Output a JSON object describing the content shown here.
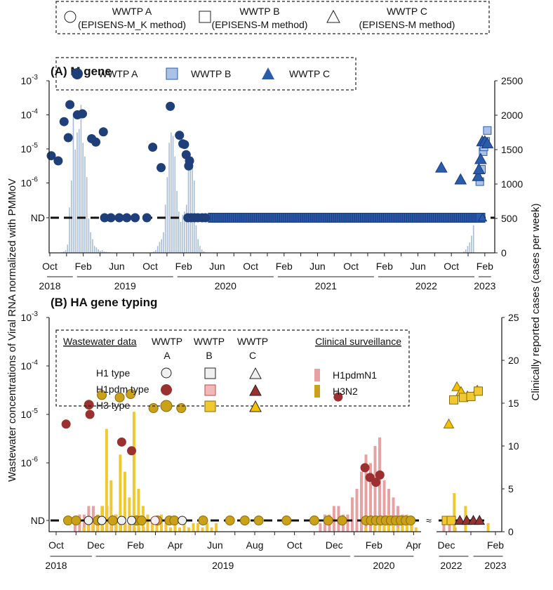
{
  "top_legend": {
    "a": "WWTP A",
    "a_method": "(EPISENS-M_K method)",
    "b": "WWTP B",
    "b_method": "(EPISENS-M method)",
    "c": "WWTP C",
    "c_method": "(EPISENS-M method)"
  },
  "y_label_left": "Wastewater concentrations of Viral RNA normalized with PMMoV",
  "y_label_right": "Clinically reported cases (cases per week)",
  "colors": {
    "navy": "#1f3f7a",
    "lightblue": "#a9c2e6",
    "blue": "#2a5caa",
    "bars_a": "#a8bcd6",
    "red": "#9b3030",
    "pink": "#e8a0a0",
    "gold": "#c9a21a",
    "yellow": "#f0c830",
    "white": "#f0f0f0"
  },
  "chart_data": [
    {
      "type": "scatter+bar",
      "title": "(A) M gene",
      "x_unit": "months since Oct 2018",
      "left_ticks": [
        "10-3",
        "10-4",
        "10-5",
        "10-6",
        "ND"
      ],
      "right_ticks": [
        "2500",
        "2000",
        "1500",
        "1000",
        "500",
        "0"
      ],
      "ylim_right": [
        0,
        2500
      ],
      "x_tick_labels": [
        "Oct",
        "Feb",
        "Jun",
        "Oct",
        "Feb",
        "Jun",
        "Oct",
        "Feb",
        "Jun",
        "Oct",
        "Feb",
        "Jun",
        "Oct",
        "Feb"
      ],
      "years": [
        "2018",
        "2019",
        "2020",
        "2021",
        "2022",
        "2023"
      ],
      "legend": [
        "WWTP A",
        "WWTP B",
        "WWTP C"
      ],
      "wwtp_a": [
        [
          0.17,
          -5.2
        ],
        [
          1.0,
          -5.35
        ],
        [
          1.7,
          -4.2
        ],
        [
          2.2,
          -4.67
        ],
        [
          2.4,
          -3.7
        ],
        [
          3.3,
          -4.0
        ],
        [
          3.9,
          -3.97
        ],
        [
          5.0,
          -4.7
        ],
        [
          5.5,
          -4.8
        ],
        [
          6.4,
          -4.5
        ],
        [
          12.3,
          -4.95
        ],
        [
          13.3,
          -5.55
        ],
        [
          14.4,
          -3.75
        ],
        [
          15.5,
          -4.6
        ],
        [
          15.9,
          -4.85
        ],
        [
          16.1,
          -4.87
        ],
        [
          16.3,
          -5.17
        ],
        [
          16.7,
          -5.35
        ],
        [
          16.6,
          -5.5
        ]
      ],
      "wwtp_a_nd": [
        6.55,
        7.3,
        8.3,
        9.2,
        10.2,
        11.6,
        16.5,
        16.9,
        17.3,
        17.7,
        18.2,
        18.6
      ],
      "wwtp_b": [
        [
          51.4,
          -5.96
        ],
        [
          51.6,
          -5.6
        ],
        [
          51.8,
          -5.08
        ],
        [
          51.9,
          -4.94
        ],
        [
          52.1,
          -4.78
        ],
        [
          52.3,
          -4.46
        ]
      ],
      "wwtp_bc_nd_range": [
        19.5,
        51.6
      ],
      "wwtp_c": [
        [
          46.8,
          -5.55
        ],
        [
          49.1,
          -5.9
        ],
        [
          51.2,
          -5.8
        ],
        [
          51.3,
          -5.6
        ],
        [
          51.5,
          -5.3
        ],
        [
          51.7,
          -4.78
        ],
        [
          52.0,
          -4.78
        ],
        [
          52.3,
          -4.84
        ]
      ],
      "cases": [
        {
          "start": 1.2,
          "values": [
            5,
            10,
            20,
            40,
            120,
            660,
            1050,
            2020,
            1500,
            1750,
            1800,
            2150,
            1600,
            1400,
            1100,
            500,
            300,
            200,
            100,
            80,
            50,
            30,
            40,
            20,
            15,
            10,
            8
          ]
        },
        {
          "start": 12.2,
          "values": [
            10,
            20,
            40,
            100,
            160,
            200,
            300,
            700,
            1100,
            1600,
            1750,
            1700,
            1400,
            900,
            600,
            450,
            550,
            600,
            700,
            1300,
            1400,
            1400,
            1050,
            400,
            200,
            100,
            50,
            20
          ]
        },
        {
          "start": 49.5,
          "values": [
            20,
            50,
            100,
            150,
            250,
            400
          ]
        }
      ]
    },
    {
      "type": "scatter+bar",
      "title": "(B) HA gene typing",
      "x_unit": "months since Oct 2018 (left panel), months since Dec 2022 (right panel)",
      "left_ticks": [
        "10-3",
        "10-4",
        "10-5",
        "10-6",
        "ND"
      ],
      "right_ticks": [
        "25",
        "20",
        "15",
        "10",
        "5",
        "0"
      ],
      "ylim_right": [
        0,
        25
      ],
      "x_tick_labels": [
        "Oct",
        "Dec",
        "Feb",
        "Apr",
        "Jun",
        "Aug",
        "Oct",
        "Dec",
        "Feb",
        "Apr"
      ],
      "x_tick_labels_right": [
        "Dec",
        "Feb"
      ],
      "years": [
        "2018",
        "2019",
        "2020"
      ],
      "years_right": [
        "2022",
        "2023"
      ],
      "legend": {
        "ww_title": "Wastewater data",
        "cols": [
          "WWTP",
          "WWTP",
          "WWTP"
        ],
        "col_letters": [
          "A",
          "B",
          "C"
        ],
        "rows": [
          "H1 type",
          "H1pdm type",
          "H3 type"
        ],
        "clin_title": "Clinical surveillance",
        "clin": [
          "H1pdmN1",
          "H3N2"
        ]
      },
      "h3_a": [
        [
          1.65,
          -4.8
        ],
        [
          2.3,
          -4.6
        ],
        [
          3.2,
          -4.65
        ],
        [
          3.75,
          -4.58
        ],
        [
          4.9,
          -4.87
        ],
        [
          6.3,
          -4.87
        ]
      ],
      "h1pdm_a": [
        [
          0.5,
          -5.2
        ],
        [
          1.65,
          -4.8
        ],
        [
          1.7,
          -5.0
        ],
        [
          3.3,
          -5.57
        ],
        [
          3.8,
          -5.75
        ],
        [
          14.2,
          -4.64
        ],
        [
          15.55,
          -6.1
        ],
        [
          15.8,
          -6.3
        ],
        [
          16.1,
          -6.4
        ],
        [
          16.3,
          -6.25
        ]
      ],
      "h3_a_nd": [
        0.6,
        1.0,
        2.1,
        2.85,
        4.05,
        4.3,
        5.1,
        5.7,
        5.95,
        7.4,
        8.75,
        9.5,
        10.2,
        11.6,
        13.0,
        13.7,
        14.4,
        15.6,
        15.85,
        16.1,
        16.35,
        16.6,
        16.85,
        17.1,
        17.35,
        17.6,
        17.85
      ],
      "h1_a_nd": [
        1.63,
        2.3,
        3.3,
        3.8,
        6.35
      ],
      "h1pdm_a_nd": [
        4.98
      ],
      "h3_b_right": [
        [
          0.3,
          -4.7
        ],
        [
          0.7,
          -4.65
        ],
        [
          1.0,
          -4.63
        ],
        [
          1.3,
          -4.52
        ]
      ],
      "h3_c_right": [
        [
          0.1,
          -5.2
        ],
        [
          0.43,
          -4.43
        ],
        [
          0.6,
          -4.53
        ],
        [
          0.86,
          -4.62
        ],
        [
          1.26,
          -4.5
        ]
      ],
      "h3_b_right_nd": [
        0.0,
        0.2
      ],
      "h1pdm_c_right_nd": [
        0.55,
        0.83,
        1.1,
        1.35
      ],
      "h1pdmn1": [
        {
          "start": 0.95,
          "step": 0.23,
          "values": [
            1,
            2,
            2,
            3,
            3,
            2,
            3,
            3,
            2,
            2,
            1.5,
            1,
            1,
            0.5,
            0.5,
            0.5
          ]
        },
        {
          "start": 13.3,
          "step": 0.23,
          "values": [
            1,
            2,
            2,
            3,
            3,
            2,
            2,
            4,
            5,
            7,
            9,
            8,
            10,
            11,
            6,
            5,
            4,
            3,
            2,
            1,
            1
          ]
        },
        {
          "start": -0.1,
          "step": 0.23,
          "panel": "right",
          "values": [
            1,
            1,
            0.5
          ]
        }
      ],
      "h3n2": [
        {
          "start": 1.3,
          "step": 0.23,
          "values": [
            0.5,
            1,
            1,
            2,
            3,
            12,
            6,
            2,
            9,
            7,
            4,
            14,
            5,
            3,
            2,
            1.5,
            1,
            2,
            1,
            0.5,
            1,
            0.5,
            1.5,
            0.5,
            1,
            1,
            0.5,
            1,
            0.5,
            1
          ]
        },
        {
          "start": 15.5,
          "step": 0.23,
          "values": [
            0.5,
            0,
            1,
            1,
            1,
            2,
            1,
            0.5,
            1,
            2,
            1,
            0.5
          ]
        },
        {
          "start": 0.25,
          "step": 0.23,
          "panel": "right",
          "values": [
            4.5,
            0,
            3,
            0,
            0,
            0,
            1
          ]
        }
      ]
    }
  ]
}
